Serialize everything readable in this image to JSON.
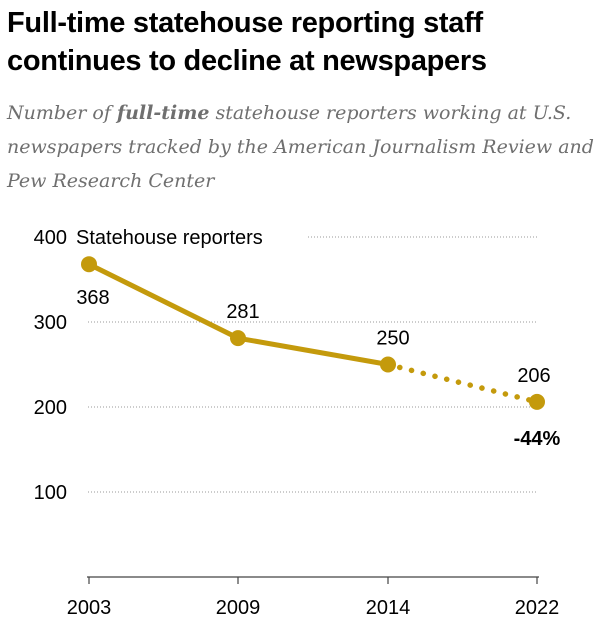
{
  "header": {
    "title": "Full-time statehouse reporting staff continues to decline at newspapers",
    "subtitle_pre": "Number of ",
    "subtitle_emph": "full-time",
    "subtitle_post": " statehouse reporters working at U.S. newspapers tracked by the American Journalism Review and Pew Research Center"
  },
  "chart_data": {
    "type": "line",
    "title": "Full-time statehouse reporting staff continues to decline at newspapers",
    "xlabel": "",
    "ylabel": "Statehouse reporters",
    "categories": [
      "2003",
      "2009",
      "2014",
      "2022"
    ],
    "series": [
      {
        "name": "Statehouse reporters",
        "values": [
          368,
          281,
          250,
          206
        ]
      }
    ],
    "value_labels": [
      "368",
      "281",
      "250",
      "206"
    ],
    "segment_styles": [
      "solid",
      "solid",
      "dotted"
    ],
    "ylim": [
      0,
      400
    ],
    "yticks": [
      100,
      200,
      300,
      400
    ],
    "ytick_labels": [
      "100",
      "200",
      "300",
      "400"
    ],
    "grid": true,
    "annotation": "-44%",
    "color": "#c49a0c"
  }
}
